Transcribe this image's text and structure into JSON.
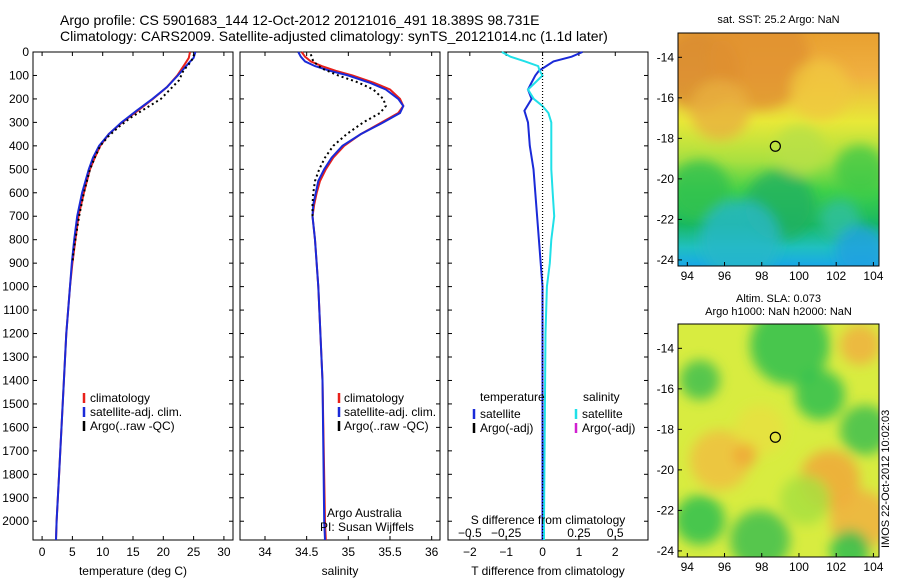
{
  "header": {
    "line1": "Argo profile: CS 5901683_144 12-Oct-2012 20121016_491 18.389S 98.731E",
    "line2": "Climatology: CARS2009. Satellite-adjusted climatology: synTS_20121014.nc (1.1d later)"
  },
  "stamp": "IMOS 22-Oct-2012 10:02:03",
  "colors": {
    "clim": "#e8201a",
    "sat": "#1a2ad8",
    "argo": "#000000",
    "sat_s": "#20e0e8",
    "argo_s": "#d020d0"
  },
  "depth_axis": {
    "ylim": [
      0,
      2080
    ],
    "ticks": [
      0,
      100,
      200,
      300,
      400,
      500,
      600,
      700,
      800,
      900,
      1000,
      1100,
      1200,
      1300,
      1400,
      1500,
      1600,
      1700,
      1800,
      1900,
      2000
    ],
    "tick_labels": [
      "0",
      "100",
      "200",
      "300",
      "400",
      "500",
      "600",
      "700",
      "800",
      "900",
      "1000",
      "1100",
      "1200",
      "1300",
      "1400",
      "1500",
      "1600",
      "1700",
      "1800",
      "1900",
      "2000"
    ]
  },
  "chart_data": [
    {
      "type": "line",
      "id": "temperature",
      "xlabel": "temperature (deg C)",
      "xlim": [
        -1.5,
        31.5
      ],
      "xticks": [
        0,
        5,
        10,
        15,
        20,
        25,
        30
      ],
      "xtick_labels": [
        "0",
        "5",
        "10",
        "15",
        "20",
        "25",
        "30"
      ],
      "legend": [
        "climatology",
        "satellite-adj. clim.",
        "Argo(..raw -QC)"
      ],
      "series": [
        {
          "name": "climatology",
          "depth": [
            0,
            25,
            50,
            100,
            150,
            200,
            250,
            300,
            350,
            400,
            450,
            500,
            600,
            700,
            800,
            900,
            1000,
            1200,
            1400,
            1600,
            1800,
            2000,
            2080
          ],
          "values": [
            24.4,
            24.2,
            23.6,
            22.3,
            20.6,
            18.3,
            15.8,
            13.2,
            11.0,
            9.6,
            8.7,
            7.9,
            6.9,
            6.0,
            5.5,
            5.0,
            4.6,
            4.0,
            3.6,
            3.2,
            2.8,
            2.4,
            2.3
          ]
        },
        {
          "name": "satellite-adj. clim.",
          "depth": [
            0,
            25,
            50,
            100,
            150,
            200,
            250,
            300,
            350,
            400,
            450,
            500,
            600,
            700,
            800,
            900,
            1000,
            1200,
            1400,
            1600,
            1800,
            2000,
            2080
          ],
          "values": [
            25.3,
            25.0,
            24.1,
            22.4,
            20.6,
            18.2,
            15.6,
            13.1,
            11.0,
            9.4,
            8.4,
            7.7,
            6.6,
            5.8,
            5.3,
            4.9,
            4.6,
            4.0,
            3.6,
            3.2,
            2.8,
            2.4,
            2.3
          ]
        },
        {
          "name": "Argo(..raw -QC)",
          "depth": [
            10,
            40,
            80,
            120,
            160,
            200,
            240,
            280,
            320,
            360,
            400,
            450,
            500,
            550,
            600,
            650,
            700,
            750,
            800,
            850,
            900
          ],
          "values": [
            25.1,
            24.6,
            23.3,
            22.6,
            21.1,
            19.6,
            17.1,
            14.6,
            12.6,
            10.9,
            9.6,
            8.7,
            7.9,
            7.4,
            6.9,
            6.5,
            6.1,
            5.8,
            5.5,
            5.2,
            5.0
          ]
        }
      ]
    },
    {
      "type": "line",
      "id": "salinity",
      "xlabel": "salinity",
      "xlim": [
        33.7,
        36.1
      ],
      "xticks": [
        34,
        34.5,
        35,
        35.5,
        36
      ],
      "xtick_labels": [
        "34",
        "34.5",
        "35",
        "35.5",
        "36"
      ],
      "legend": [
        "climatology",
        "satellite-adj. clim.",
        "Argo(..raw -QC)"
      ],
      "credits": [
        "Argo Australia",
        "PI: Susan Wijffels"
      ],
      "series": [
        {
          "name": "climatology",
          "depth": [
            0,
            20,
            40,
            60,
            80,
            100,
            130,
            160,
            200,
            230,
            260,
            300,
            350,
            400,
            450,
            500,
            550,
            600,
            650,
            700,
            800,
            1000,
            1400,
            2000,
            2080
          ],
          "values": [
            34.44,
            34.48,
            34.55,
            34.68,
            34.85,
            35.05,
            35.3,
            35.5,
            35.62,
            35.66,
            35.6,
            35.4,
            35.15,
            34.95,
            34.82,
            34.73,
            34.66,
            34.62,
            34.59,
            34.57,
            34.6,
            34.64,
            34.69,
            34.72,
            34.73
          ]
        },
        {
          "name": "satellite-adj. clim.",
          "depth": [
            0,
            20,
            40,
            60,
            80,
            100,
            130,
            160,
            200,
            230,
            260,
            300,
            350,
            400,
            450,
            500,
            550,
            600,
            650,
            700,
            800,
            1000,
            1400,
            2000,
            2080
          ],
          "values": [
            34.4,
            34.43,
            34.48,
            34.6,
            34.78,
            35.0,
            35.25,
            35.45,
            35.6,
            35.66,
            35.62,
            35.42,
            35.15,
            34.93,
            34.8,
            34.71,
            34.64,
            34.61,
            34.58,
            34.57,
            34.6,
            34.64,
            34.69,
            34.71,
            34.72
          ]
        },
        {
          "name": "Argo(..raw -QC)",
          "depth": [
            10,
            40,
            70,
            100,
            130,
            160,
            200,
            230,
            260,
            300,
            350,
            400,
            450,
            500,
            550,
            600,
            650,
            700
          ],
          "values": [
            34.55,
            34.58,
            34.68,
            34.88,
            35.12,
            35.3,
            35.42,
            35.45,
            35.38,
            35.18,
            34.98,
            34.82,
            34.72,
            34.65,
            34.6,
            34.58,
            34.57,
            34.57
          ]
        }
      ]
    },
    {
      "type": "line",
      "id": "difference",
      "xlabel": "T difference from climatology",
      "xlabel_top": "S difference from climatology",
      "xlim": [
        -2.6,
        2.9
      ],
      "xticks": [
        -2,
        -1,
        0,
        1,
        2
      ],
      "xtick_labels": [
        "−2",
        "−1",
        "0",
        "1",
        "2"
      ],
      "s_ticks": [
        -0.5,
        -0.25,
        0.25,
        0.5
      ],
      "s_tick_labels": [
        "−0.5",
        "−0.25",
        "0.25",
        "0.5"
      ],
      "legend": {
        "temperature_header": "temperature",
        "salinity_header": "salinity",
        "items": [
          "satellite",
          "Argo(-adj)",
          "satellite",
          "Argo(-adj)"
        ]
      },
      "series": [
        {
          "name": "T satellite",
          "depth": [
            0,
            20,
            40,
            60,
            80,
            100,
            130,
            160,
            200,
            250,
            300,
            400,
            500,
            600,
            700,
            800,
            900,
            1000,
            1200,
            1500,
            2000,
            2080
          ],
          "values": [
            1.1,
            0.8,
            0.3,
            0.1,
            -0.1,
            -0.2,
            -0.3,
            -0.4,
            -0.3,
            -0.5,
            -0.4,
            -0.35,
            -0.25,
            -0.2,
            -0.15,
            -0.1,
            -0.05,
            0,
            0,
            0,
            0,
            0
          ]
        },
        {
          "name": "S satellite",
          "depth": [
            0,
            20,
            40,
            60,
            80,
            100,
            130,
            160,
            200,
            230,
            260,
            300,
            400,
            500,
            600,
            700,
            800,
            900,
            1000,
            1200,
            2000,
            2080
          ],
          "values": [
            -0.28,
            -0.22,
            -0.12,
            -0.03,
            -0.02,
            0.0,
            -0.05,
            -0.1,
            -0.06,
            0.0,
            0.04,
            0.06,
            0.06,
            0.06,
            0.07,
            0.08,
            0.06,
            0.05,
            0.03,
            0.02,
            0.01,
            0.01
          ]
        }
      ]
    }
  ],
  "maps": [
    {
      "id": "sst",
      "title": "sat. SST: 25.2 Argo: NaN",
      "title2": "",
      "xticks": [
        94,
        96,
        98,
        100,
        102,
        104
      ],
      "xtick_labels": [
        "94",
        "96",
        "98",
        "100",
        "102",
        "104"
      ],
      "yticks": [
        -14,
        -16,
        -18,
        -20,
        -22,
        -24
      ],
      "ytick_labels": [
        "-14",
        "-16",
        "-18",
        "-20",
        "-22",
        "-24"
      ],
      "xlim": [
        93.5,
        104.3
      ],
      "ylim": [
        -24.3,
        -12.8
      ],
      "marker": [
        98.731,
        -18.389
      ]
    },
    {
      "id": "sla",
      "title": "Altim. SLA: 0.073",
      "title2": "Argo h1000: NaN h2000: NaN",
      "xticks": [
        94,
        96,
        98,
        100,
        102,
        104
      ],
      "xtick_labels": [
        "94",
        "96",
        "98",
        "100",
        "102",
        "104"
      ],
      "yticks": [
        -14,
        -16,
        -18,
        -20,
        -22,
        -24
      ],
      "ytick_labels": [
        "-14",
        "-16",
        "-18",
        "-20",
        "-22",
        "-24"
      ],
      "xlim": [
        93.5,
        104.3
      ],
      "ylim": [
        -24.3,
        -12.8
      ],
      "marker": [
        98.731,
        -18.389
      ]
    }
  ]
}
